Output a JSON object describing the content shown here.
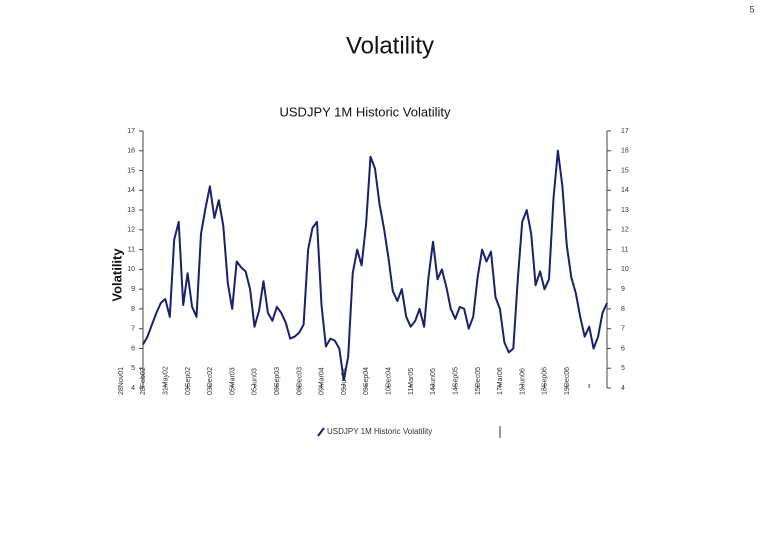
{
  "page_number": "5",
  "heading": "Volatility",
  "chart_data": {
    "type": "line",
    "title": "USDJPY 1M Historic Volatility",
    "y_label": "Volatility",
    "categories": [
      "28Nov01",
      null,
      null,
      null,
      null,
      "28Feb02",
      null,
      null,
      null,
      null,
      "31May02",
      null,
      null,
      null,
      null,
      "03Sep02",
      null,
      null,
      null,
      null,
      "03Dec02",
      null,
      null,
      null,
      null,
      "05Mar03",
      null,
      null,
      null,
      null,
      "05Jun03",
      null,
      null,
      null,
      null,
      "08Sep03",
      null,
      null,
      null,
      null,
      "08Dec03",
      null,
      null,
      null,
      null,
      "09Mar04",
      null,
      null,
      null,
      null,
      "09Jun04",
      null,
      null,
      null,
      null,
      "09Sep04",
      null,
      null,
      null,
      null,
      "10Dec04",
      null,
      null,
      null,
      null,
      "11Mar05",
      null,
      null,
      null,
      null,
      "14Jun05",
      null,
      null,
      null,
      null,
      "14Sep05",
      null,
      null,
      null,
      null,
      "15Dec05",
      null,
      null,
      null,
      null,
      "17Mar06",
      null,
      null,
      null,
      null,
      "19Jun06",
      null,
      null,
      null,
      null,
      "18Sep06",
      null,
      null,
      null,
      null,
      "19Dec06",
      null,
      null,
      null,
      null
    ],
    "series": [
      {
        "name": "USDJPY 1M Historic Volatility",
        "color": "#1a1f6e",
        "values": [
          6.2,
          6.6,
          7.2,
          7.8,
          8.3,
          8.5,
          7.6,
          11.5,
          12.4,
          8.2,
          9.8,
          8.1,
          7.6,
          11.8,
          13.1,
          14.2,
          12.6,
          13.5,
          12.2,
          9.3,
          8.0,
          10.4,
          10.1,
          9.9,
          9.0,
          7.1,
          7.9,
          9.4,
          7.8,
          7.4,
          8.1,
          7.8,
          7.3,
          6.5,
          6.6,
          6.8,
          7.2,
          11.0,
          12.1,
          12.4,
          8.2,
          6.1,
          6.5,
          6.4,
          6.0,
          4.4,
          5.6,
          9.8,
          11.0,
          10.2,
          12.3,
          15.7,
          15.1,
          13.3,
          12.1,
          10.6,
          8.9,
          8.4,
          9.0,
          7.6,
          7.1,
          7.4,
          8.0,
          7.1,
          9.6,
          11.4,
          9.5,
          10.0,
          9.1,
          8.0,
          7.5,
          8.1,
          8.0,
          7.0,
          7.6,
          9.6,
          11.0,
          10.4,
          10.9,
          8.6,
          8.0,
          6.3,
          5.8,
          6.0,
          9.5,
          12.4,
          13.0,
          11.8,
          9.2,
          9.9,
          9.0,
          9.5,
          13.6,
          16.0,
          14.2,
          11.2,
          9.6,
          8.8,
          7.6,
          6.6,
          7.1,
          6.0,
          6.6,
          7.8,
          8.3
        ]
      }
    ],
    "ylim": [
      4,
      17
    ],
    "yticks": [
      4,
      5,
      6,
      7,
      8,
      9,
      10,
      11,
      12,
      13,
      14,
      15,
      16,
      17
    ],
    "y2lim": [
      4,
      17
    ],
    "y2ticks": [
      4,
      5,
      6,
      7,
      8,
      9,
      10,
      11,
      12,
      13,
      14,
      15,
      16,
      17
    ]
  }
}
